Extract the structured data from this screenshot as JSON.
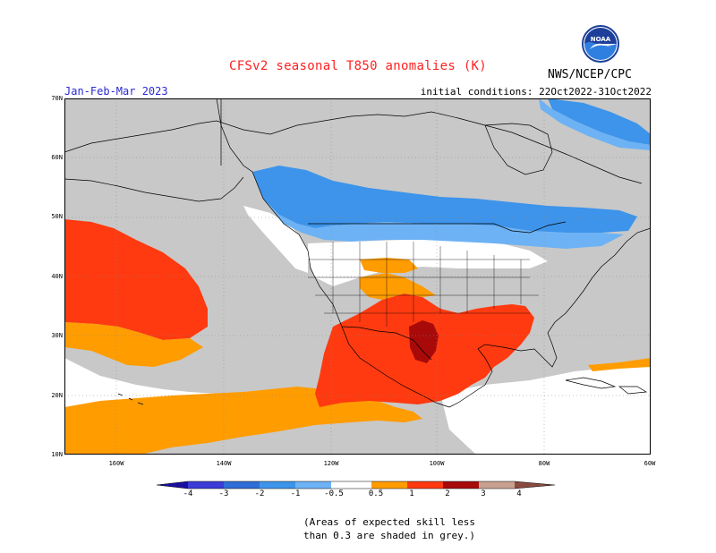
{
  "header": {
    "title": "CFSv2 seasonal T850 anomalies (K)",
    "agency": "NWS/NCEP/CPC",
    "period": "Jan-Feb-Mar 2023",
    "initial_conditions": "initial conditions: 22Oct2022-31Oct2022",
    "logo_text": "NOAA"
  },
  "axes": {
    "lat_labels": [
      "70N",
      "60N",
      "50N",
      "40N",
      "30N",
      "20N",
      "10N"
    ],
    "lon_labels": [
      "160W",
      "140W",
      "120W",
      "100W",
      "80W",
      "60W"
    ]
  },
  "colorbar": {
    "labels": [
      "-4",
      "-3",
      "-2",
      "-1",
      "-0.5",
      "0.5",
      "1",
      "2",
      "3",
      "4"
    ],
    "colors": {
      "lt_m4": "#1a0fa0",
      "m4_m3": "#3c3cd8",
      "m3_m2": "#2f6ed6",
      "m2_m1": "#3d94ea",
      "m1_m05": "#6db2f4",
      "neutral": "#ffffff",
      "p05_p1": "#ff9c00",
      "p1_p2": "#ff3a10",
      "p2_p3": "#a80a0a",
      "p3_p4": "#c8a090",
      "gt_p4": "#8a4a40"
    }
  },
  "map_colors": {
    "grey": "#c8c8c8",
    "white": "#ffffff",
    "orange": "#ff9c00",
    "red": "#ff3a10",
    "darkred": "#a80a0a",
    "blue": "#3d94ea",
    "lightblue": "#6db2f4"
  },
  "note": {
    "line1": "(Areas of expected skill less",
    "line2": "than 0.3 are shaded in grey.)"
  }
}
